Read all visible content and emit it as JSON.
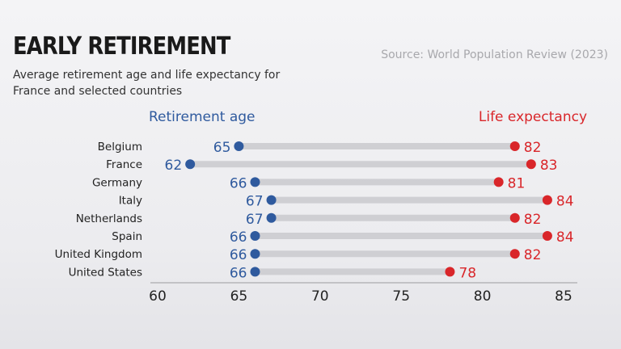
{
  "header": {
    "title": "EARLY RETIREMENT",
    "subtitle": "Average retirement age and life expectancy for France and selected countries",
    "source": "Source: World Population Review (2023)"
  },
  "chart_data": {
    "type": "dumbbell",
    "categories": [
      "Belgium",
      "France",
      "Germany",
      "Italy",
      "Netherlands",
      "Spain",
      "United Kingdom",
      "United States"
    ],
    "series": [
      {
        "name": "Retirement age",
        "values": [
          65,
          62,
          66,
          67,
          67,
          66,
          66,
          66
        ],
        "color": "#2f5a9e"
      },
      {
        "name": "Life expectancy",
        "values": [
          82,
          83,
          81,
          84,
          82,
          84,
          82,
          78
        ],
        "color": "#d9262a"
      }
    ],
    "x_ticks": [
      "60",
      "65",
      "70",
      "75",
      "80",
      "85"
    ],
    "xlim": [
      60,
      85
    ],
    "title": "EARLY RETIREMENT",
    "xlabel": "",
    "ylabel": "",
    "grid": false,
    "legend": "top"
  }
}
